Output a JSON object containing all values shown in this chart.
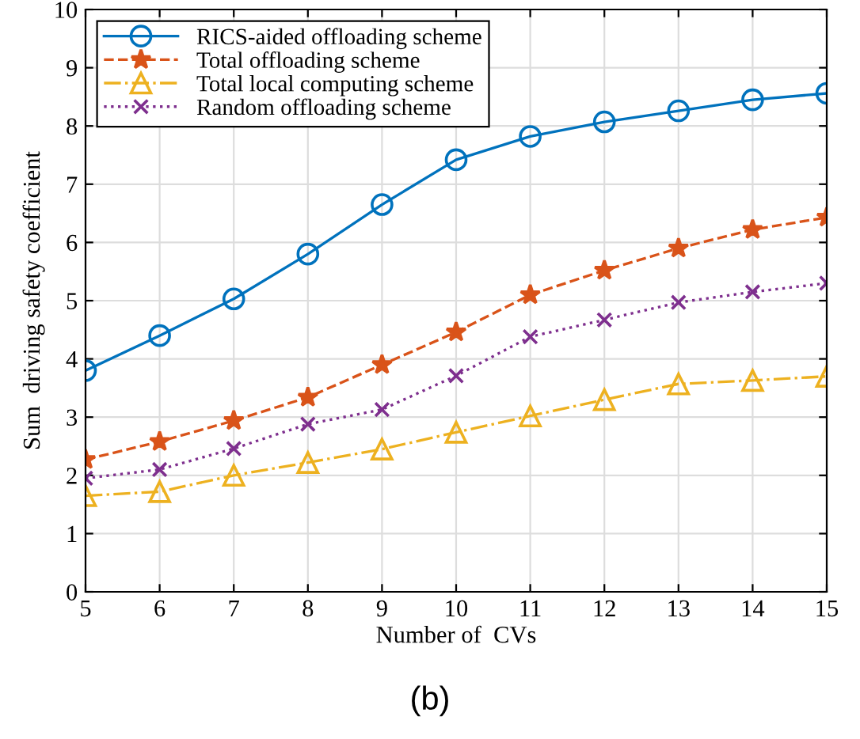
{
  "chart_data": {
    "type": "line",
    "xlabel": "Number of  CVs",
    "ylabel": "Sum  driving safety coefficient",
    "x": [
      5,
      6,
      7,
      8,
      9,
      10,
      11,
      12,
      13,
      14,
      15
    ],
    "xlim": [
      5,
      15
    ],
    "xticks": [
      5,
      6,
      7,
      8,
      9,
      10,
      11,
      12,
      13,
      14,
      15
    ],
    "ylim": [
      0,
      10
    ],
    "yticks": [
      0,
      1,
      2,
      3,
      4,
      5,
      6,
      7,
      8,
      9,
      10
    ],
    "grid": true,
    "legend": "top left",
    "annotations": [
      "(b)"
    ],
    "series": [
      {
        "name": "RICS-aided offloading scheme",
        "color": "#0072bd",
        "marker": "circle",
        "line_style": "solid",
        "values": [
          3.8,
          4.4,
          5.03,
          5.8,
          6.65,
          7.42,
          7.82,
          8.07,
          8.26,
          8.45,
          8.56
        ]
      },
      {
        "name": "Total offloading scheme",
        "color": "#d95319",
        "marker": "star",
        "line_style": "dashed",
        "values": [
          2.27,
          2.58,
          2.94,
          3.34,
          3.9,
          4.46,
          5.1,
          5.52,
          5.9,
          6.22,
          6.43
        ]
      },
      {
        "name": "Total local computing scheme",
        "color": "#edb120",
        "marker": "triangle",
        "line_style": "dashdot",
        "values": [
          1.65,
          1.72,
          2.0,
          2.22,
          2.45,
          2.74,
          3.02,
          3.3,
          3.57,
          3.63,
          3.7
        ]
      },
      {
        "name": "Random offloading scheme",
        "color": "#7e2f8e",
        "marker": "cross",
        "line_style": "dotted",
        "values": [
          1.95,
          2.1,
          2.46,
          2.88,
          3.13,
          3.71,
          4.38,
          4.67,
          4.97,
          5.15,
          5.3
        ]
      }
    ]
  }
}
